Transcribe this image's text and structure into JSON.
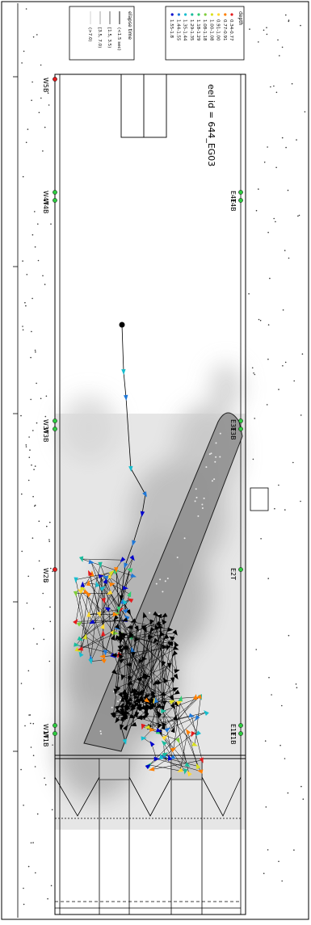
{
  "eel_label": "eel id = 644_EG03",
  "legend_depth": {
    "title": "depth",
    "items": [
      {
        "label": "0.34-0.77",
        "color": "#e41a1c"
      },
      {
        "label": "0.77-0.91",
        "color": "#ff7f00"
      },
      {
        "label": "0.91-1.00",
        "color": "#ffd92f"
      },
      {
        "label": "1.00-1.08",
        "color": "#d9e021"
      },
      {
        "label": "1.08-1.18",
        "color": "#7fcd3b"
      },
      {
        "label": "1.18-1.29",
        "color": "#2ecc71"
      },
      {
        "label": "1.29-1.35",
        "color": "#1abc9c"
      },
      {
        "label": "1.35-1.44",
        "color": "#17becf"
      },
      {
        "label": "1.44-1.55",
        "color": "#1f78d8"
      },
      {
        "label": "1.55-1.8",
        "color": "#0000cc"
      }
    ]
  },
  "legend_elapse": {
    "title": "elapse time",
    "items": [
      {
        "label": "(<1.5 sec)",
        "stroke": "#000000",
        "dash": ""
      },
      {
        "label": "[1.5, 3.5)",
        "stroke": "#555555",
        "dash": ""
      },
      {
        "label": "[3.5, 7.0)",
        "stroke": "#999999",
        "dash": ""
      },
      {
        "label": "(>7.0)",
        "stroke": "#cccccc",
        "dash": ""
      }
    ]
  },
  "stations_east": [
    {
      "label": "E4T",
      "color": "#2ecc40"
    },
    {
      "label": "E4B",
      "color": "#2ecc40"
    },
    {
      "label": "E3T",
      "color": "#2ecc40"
    },
    {
      "label": "E3B",
      "color": "#2ecc40"
    },
    {
      "label": "E2T",
      "color": "#2ecc40"
    },
    {
      "label": "E1T",
      "color": "#2ecc40"
    },
    {
      "label": "E1B",
      "color": "#2ecc40"
    }
  ],
  "stations_west": [
    {
      "label": "W5B",
      "color": "#e41a1c"
    },
    {
      "label": "W4T",
      "color": "#2ecc40"
    },
    {
      "label": "W4B",
      "color": "#2ecc40"
    },
    {
      "label": "W3T",
      "color": "#2ecc40"
    },
    {
      "label": "W3B",
      "color": "#2ecc40"
    },
    {
      "label": "W2B",
      "color": "#e41a1c"
    },
    {
      "label": "W1T",
      "color": "#2ecc40"
    },
    {
      "label": "W1B",
      "color": "#2ecc40"
    }
  ],
  "track_colors": {
    "start": "#000000",
    "dense": "#000000"
  }
}
